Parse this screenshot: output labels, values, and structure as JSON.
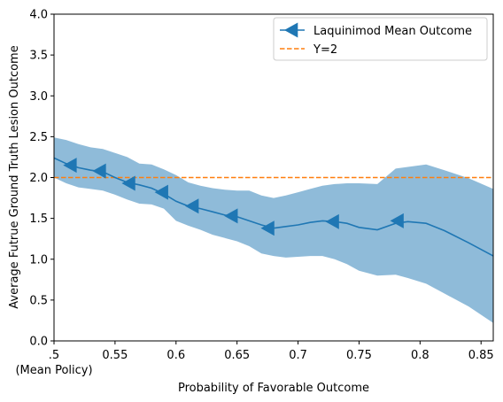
{
  "chart_data": {
    "type": "line",
    "xlabel": "Probability of Favorable Outcome",
    "ylabel": "Average Futrue Ground Truth Lesion Outcome",
    "xlim": [
      0.5,
      0.86
    ],
    "ylim": [
      0.0,
      4.0
    ],
    "x_ticks": [
      {
        "value": 0.5,
        "label": ".5",
        "sublabel": "(Mean Policy)"
      },
      {
        "value": 0.55,
        "label": "0.55"
      },
      {
        "value": 0.6,
        "label": "0.6"
      },
      {
        "value": 0.65,
        "label": "0.65"
      },
      {
        "value": 0.7,
        "label": "0.7"
      },
      {
        "value": 0.75,
        "label": "0.75"
      },
      {
        "value": 0.8,
        "label": "0.8"
      },
      {
        "value": 0.85,
        "label": "0.85"
      }
    ],
    "y_ticks": [
      {
        "value": 0.0,
        "label": "0.0"
      },
      {
        "value": 0.5,
        "label": "0.5"
      },
      {
        "value": 1.0,
        "label": "1.0"
      },
      {
        "value": 1.5,
        "label": "1.5"
      },
      {
        "value": 2.0,
        "label": "2.0"
      },
      {
        "value": 2.5,
        "label": "2.5"
      },
      {
        "value": 3.0,
        "label": "3.0"
      },
      {
        "value": 3.5,
        "label": "3.5"
      },
      {
        "value": 4.0,
        "label": "4.0"
      }
    ],
    "legend_position": "top-right",
    "series": [
      {
        "name": "Laquinimod Mean Outcome",
        "color": "#1f77b4",
        "marker": "left-triangle",
        "x": [
          0.5,
          0.51,
          0.52,
          0.53,
          0.54,
          0.55,
          0.56,
          0.57,
          0.58,
          0.59,
          0.6,
          0.61,
          0.62,
          0.63,
          0.64,
          0.65,
          0.66,
          0.67,
          0.68,
          0.69,
          0.7,
          0.71,
          0.72,
          0.73,
          0.74,
          0.75,
          0.765,
          0.78,
          0.79,
          0.805,
          0.82,
          0.84,
          0.86
        ],
        "y": [
          2.24,
          2.17,
          2.12,
          2.09,
          2.07,
          2.0,
          1.94,
          1.91,
          1.87,
          1.8,
          1.71,
          1.65,
          1.62,
          1.58,
          1.54,
          1.52,
          1.47,
          1.42,
          1.38,
          1.4,
          1.42,
          1.45,
          1.47,
          1.46,
          1.44,
          1.39,
          1.36,
          1.44,
          1.46,
          1.44,
          1.35,
          1.2,
          1.04
        ],
        "marker_x": [
          0.514,
          0.538,
          0.562,
          0.589,
          0.614,
          0.646,
          0.676,
          0.729,
          0.782
        ],
        "marker_y": [
          2.15,
          2.08,
          1.93,
          1.82,
          1.65,
          1.53,
          1.38,
          1.46,
          1.47
        ],
        "band_upper": [
          2.49,
          2.46,
          2.41,
          2.37,
          2.35,
          2.3,
          2.25,
          2.17,
          2.16,
          2.1,
          2.03,
          1.94,
          1.9,
          1.87,
          1.85,
          1.84,
          1.84,
          1.78,
          1.75,
          1.78,
          1.82,
          1.86,
          1.9,
          1.92,
          1.93,
          1.93,
          1.92,
          2.11,
          2.13,
          2.16,
          2.09,
          1.99,
          1.86
        ],
        "band_lower": [
          2.0,
          1.93,
          1.88,
          1.86,
          1.84,
          1.79,
          1.73,
          1.68,
          1.67,
          1.62,
          1.47,
          1.41,
          1.36,
          1.3,
          1.26,
          1.22,
          1.16,
          1.07,
          1.04,
          1.02,
          1.03,
          1.04,
          1.04,
          1.0,
          0.94,
          0.86,
          0.8,
          0.81,
          0.77,
          0.7,
          0.58,
          0.42,
          0.22
        ],
        "band_color": "#1f77b4",
        "band_opacity": 0.5
      },
      {
        "name": "Y=2",
        "color": "#ff7f0e",
        "style": "dashed",
        "x": [
          0.5,
          0.86
        ],
        "y": [
          2.0,
          2.0
        ]
      }
    ]
  }
}
